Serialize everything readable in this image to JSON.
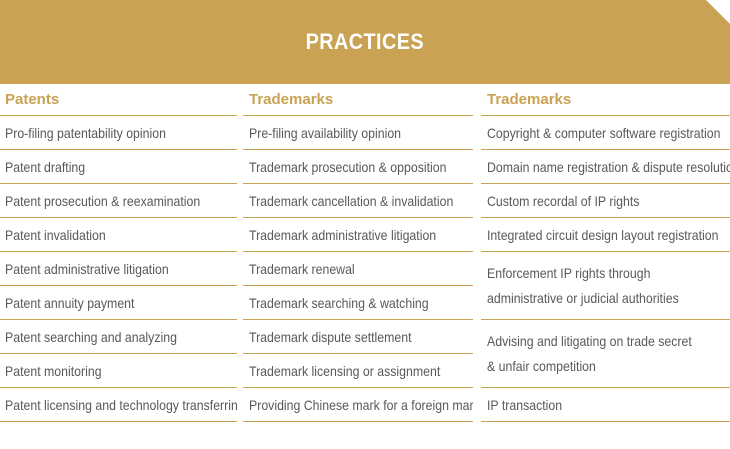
{
  "header": {
    "title": "PRACTICES"
  },
  "columns": [
    {
      "heading": "Patents",
      "items": [
        "Pro-filing patentability opinion",
        "Patent drafting",
        "Patent prosecution & reexamination",
        "Patent invalidation",
        "Patent administrative litigation",
        "Patent annuity payment",
        "Patent searching and analyzing",
        "Patent monitoring",
        "Patent licensing and technology transferring"
      ]
    },
    {
      "heading": "Trademarks",
      "items": [
        "Pre-filing availability opinion",
        "Trademark prosecution & opposition",
        "Trademark cancellation & invalidation",
        "Trademark administrative litigation",
        "Trademark renewal",
        "Trademark searching & watching",
        "Trademark dispute settlement",
        "Trademark licensing or assignment",
        "Providing Chinese mark for a foreign mark"
      ]
    },
    {
      "heading": "Trademarks",
      "items": [
        "Copyright & computer software registration",
        "Domain name registration & dispute resolution",
        "Custom recordal of IP rights",
        "Integrated circuit design layout registration",
        "Enforcement IP rights through administrative or judicial authorities",
        "Advising and litigating on trade secret & unfair competition",
        "IP transaction"
      ]
    }
  ],
  "colors": {
    "accent": "#c9a253",
    "text": "#595959",
    "banner_text": "#ffffff"
  }
}
